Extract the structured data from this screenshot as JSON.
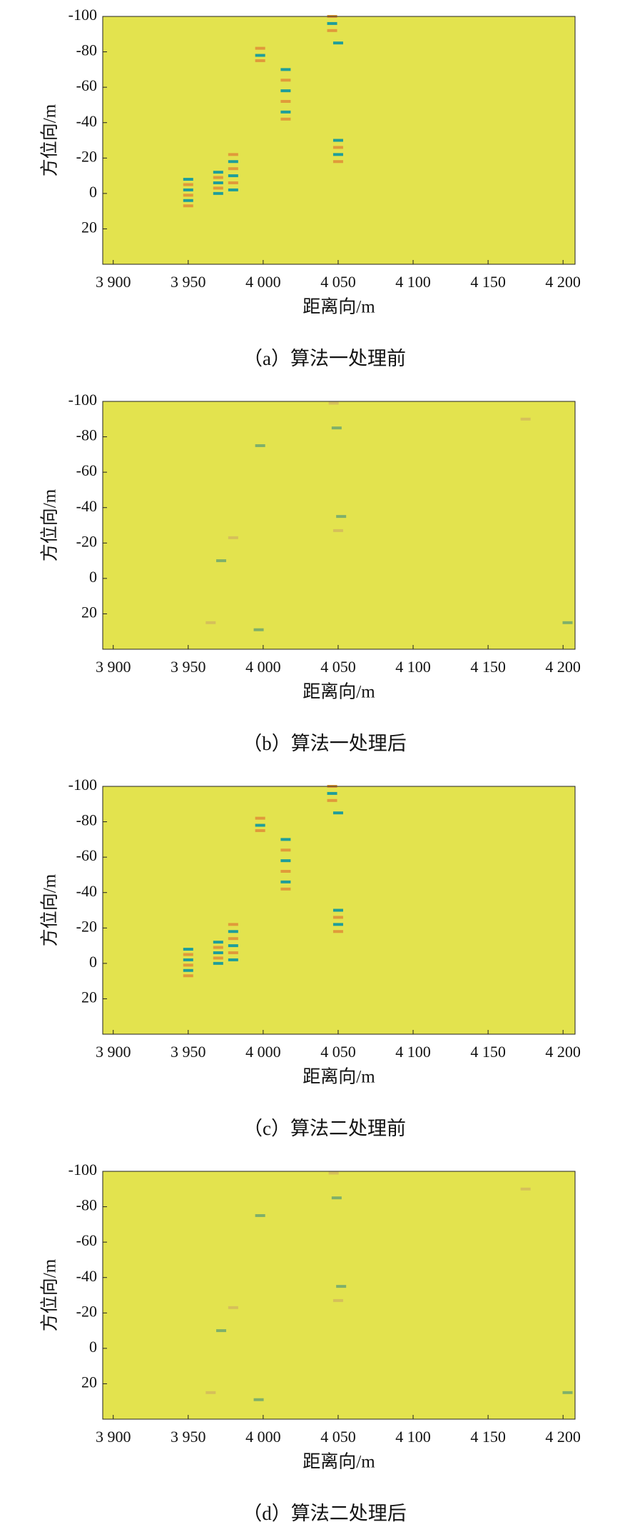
{
  "chart_data": [
    {
      "type": "heatmap",
      "caption": "（a）算法一处理前",
      "xlabel": "距离向/m",
      "ylabel": "方位向/m",
      "background": "#e3e34e",
      "colors": [
        "#1f9e9a",
        "#e09a3a"
      ],
      "xlim": [
        3893,
        4208
      ],
      "ylim": [
        -100,
        40
      ],
      "xticks": [
        {
          "value": 3900,
          "label": "3 900"
        },
        {
          "value": 3950,
          "label": "3 950"
        },
        {
          "value": 4000,
          "label": "4 000"
        },
        {
          "value": 4050,
          "label": "4 050"
        },
        {
          "value": 4100,
          "label": "4 100"
        },
        {
          "value": 4150,
          "label": "4 150"
        },
        {
          "value": 4200,
          "label": "4 200"
        }
      ],
      "yticks": [
        -100,
        -80,
        -60,
        -40,
        -20,
        0,
        20
      ],
      "x": [
        3950,
        3950,
        3950,
        3950,
        3950,
        3950,
        3970,
        3970,
        3970,
        3970,
        3970,
        3980,
        3980,
        3980,
        3980,
        3980,
        3980,
        3998,
        3998,
        3998,
        4015,
        4015,
        4015,
        4015,
        4015,
        4015,
        4050,
        4050,
        4050,
        4050,
        4050,
        4046,
        4046,
        4046
      ],
      "y": [
        -8,
        -5,
        -2,
        1,
        4,
        7,
        -12,
        -9,
        -6,
        -3,
        0,
        -22,
        -18,
        -14,
        -10,
        -6,
        -2,
        -82,
        -78,
        -75,
        -70,
        -64,
        -58,
        -52,
        -46,
        -42,
        -30,
        -26,
        -22,
        -18,
        -85,
        -100,
        -96,
        -92
      ]
    },
    {
      "type": "heatmap",
      "caption": "（b）算法一处理后",
      "xlabel": "距离向/m",
      "ylabel": "方位向/m",
      "background": "#e3e34e",
      "colors": [
        "#7fb06a",
        "#d6c05a"
      ],
      "xlim": [
        3893,
        4208
      ],
      "ylim": [
        -100,
        40
      ],
      "xticks": [
        {
          "value": 3900,
          "label": "3 900"
        },
        {
          "value": 3950,
          "label": "3 950"
        },
        {
          "value": 4000,
          "label": "4 000"
        },
        {
          "value": 4050,
          "label": "4 050"
        },
        {
          "value": 4100,
          "label": "4 100"
        },
        {
          "value": 4150,
          "label": "4 150"
        },
        {
          "value": 4200,
          "label": "4 200"
        }
      ],
      "yticks": [
        -100,
        -80,
        -60,
        -40,
        -20,
        0,
        20
      ],
      "x": [
        4049,
        4047,
        3972,
        3980,
        3998,
        4050,
        4052,
        4175,
        4203,
        3965,
        3997
      ],
      "y": [
        -85,
        -99,
        -10,
        -23,
        -75,
        -27,
        -35,
        -90,
        25,
        25,
        29
      ]
    },
    {
      "type": "heatmap",
      "caption": "（c）算法二处理前",
      "xlabel": "距离向/m",
      "ylabel": "方位向/m",
      "background": "#e3e34e",
      "colors": [
        "#1f9e9a",
        "#e09a3a"
      ],
      "xlim": [
        3893,
        4208
      ],
      "ylim": [
        -100,
        40
      ],
      "xticks": [
        {
          "value": 3900,
          "label": "3 900"
        },
        {
          "value": 3950,
          "label": "3 950"
        },
        {
          "value": 4000,
          "label": "4 000"
        },
        {
          "value": 4050,
          "label": "4 050"
        },
        {
          "value": 4100,
          "label": "4 100"
        },
        {
          "value": 4150,
          "label": "4 150"
        },
        {
          "value": 4200,
          "label": "4 200"
        }
      ],
      "yticks": [
        -100,
        -80,
        -60,
        -40,
        -20,
        0,
        20
      ],
      "x": [
        3950,
        3950,
        3950,
        3950,
        3950,
        3950,
        3970,
        3970,
        3970,
        3970,
        3970,
        3980,
        3980,
        3980,
        3980,
        3980,
        3980,
        3998,
        3998,
        3998,
        4015,
        4015,
        4015,
        4015,
        4015,
        4015,
        4050,
        4050,
        4050,
        4050,
        4050,
        4046,
        4046,
        4046
      ],
      "y": [
        -8,
        -5,
        -2,
        1,
        4,
        7,
        -12,
        -9,
        -6,
        -3,
        0,
        -22,
        -18,
        -14,
        -10,
        -6,
        -2,
        -82,
        -78,
        -75,
        -70,
        -64,
        -58,
        -52,
        -46,
        -42,
        -30,
        -26,
        -22,
        -18,
        -85,
        -100,
        -96,
        -92
      ]
    },
    {
      "type": "heatmap",
      "caption": "（d）算法二处理后",
      "xlabel": "距离向/m",
      "ylabel": "方位向/m",
      "background": "#e3e34e",
      "colors": [
        "#7fb06a",
        "#d6c05a"
      ],
      "xlim": [
        3893,
        4208
      ],
      "ylim": [
        -100,
        40
      ],
      "xticks": [
        {
          "value": 3900,
          "label": "3 900"
        },
        {
          "value": 3950,
          "label": "3 950"
        },
        {
          "value": 4000,
          "label": "4 000"
        },
        {
          "value": 4050,
          "label": "4 050"
        },
        {
          "value": 4100,
          "label": "4 100"
        },
        {
          "value": 4150,
          "label": "4 150"
        },
        {
          "value": 4200,
          "label": "4 200"
        }
      ],
      "yticks": [
        -100,
        -80,
        -60,
        -40,
        -20,
        0,
        20
      ],
      "x": [
        4049,
        4047,
        3972,
        3980,
        3998,
        4050,
        4052,
        4175,
        4203,
        3965,
        3997
      ],
      "y": [
        -85,
        -99,
        -10,
        -23,
        -75,
        -27,
        -35,
        -90,
        25,
        25,
        29
      ]
    }
  ]
}
